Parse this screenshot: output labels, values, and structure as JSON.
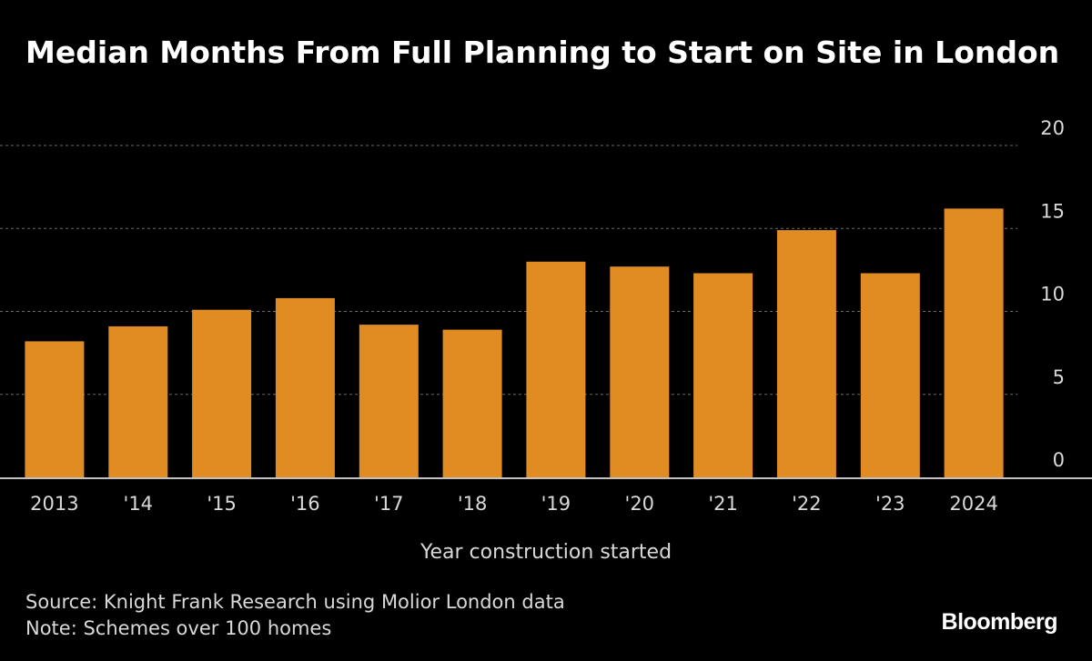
{
  "title": "Median Months From Full Planning to Start on Site in London",
  "source": "Source: Knight Frank Research using Molior London data",
  "note": "Note: Schemes over 100 homes",
  "brand": "Bloomberg",
  "colors": {
    "background": "#000000",
    "bar": "#E08C23",
    "text": "#ffffff",
    "muted_text": "#d9d9d9",
    "grid": "#6b6b6b"
  },
  "chart_data": {
    "type": "bar",
    "categories": [
      "2013",
      "'14",
      "'15",
      "'16",
      "'17",
      "'18",
      "'19",
      "'20",
      "'21",
      "'22",
      "'23",
      "2024"
    ],
    "values": [
      8.2,
      9.1,
      10.1,
      10.8,
      9.2,
      8.9,
      13.0,
      12.7,
      12.3,
      14.9,
      12.3,
      16.2
    ],
    "xlabel": "Year construction started",
    "ylabel": "",
    "ylim": [
      0,
      20
    ],
    "yticks": [
      0,
      5,
      10,
      15,
      20
    ],
    "ytick_labels": [
      "0",
      "5",
      "10",
      "15",
      "20"
    ],
    "y_axis_side": "right",
    "grid": true
  }
}
